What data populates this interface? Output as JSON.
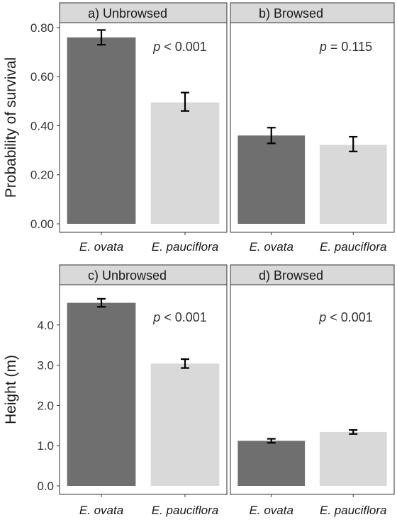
{
  "chart_data": [
    {
      "type": "bar",
      "panel": "a",
      "title": "a) Unbrowsed",
      "categories": [
        "E. ovata",
        "E. pauciflora"
      ],
      "values": [
        0.76,
        0.495
      ],
      "err_low": [
        0.73,
        0.46
      ],
      "err_high": [
        0.79,
        0.535
      ],
      "colors": [
        "#6f6f6f",
        "#d9d9d9"
      ],
      "ylabel": "Probability of survival",
      "ylim": [
        0,
        0.82
      ],
      "yticks": [
        0.0,
        0.2,
        0.4,
        0.6,
        0.8
      ],
      "ytick_labels": [
        "0.00",
        "0.20",
        "0.40",
        "0.60",
        "0.80"
      ],
      "annotation": {
        "p": "p",
        "rest": " < 0.001"
      }
    },
    {
      "type": "bar",
      "panel": "b",
      "title": "b) Browsed",
      "categories": [
        "E. ovata",
        "E. pauciflora"
      ],
      "values": [
        0.36,
        0.322
      ],
      "err_low": [
        0.328,
        0.295
      ],
      "err_high": [
        0.392,
        0.355
      ],
      "colors": [
        "#6f6f6f",
        "#d9d9d9"
      ],
      "ylim": [
        0,
        0.82
      ],
      "annotation": {
        "p": "p",
        "rest": " = 0.115"
      }
    },
    {
      "type": "bar",
      "panel": "c",
      "title": "c) Unbrowsed",
      "categories": [
        "E. ovata",
        "E. pauciflora"
      ],
      "values": [
        4.55,
        3.04
      ],
      "err_low": [
        4.45,
        2.93
      ],
      "err_high": [
        4.65,
        3.15
      ],
      "colors": [
        "#6f6f6f",
        "#d9d9d9"
      ],
      "ylabel": "Height (m)",
      "ylim": [
        0,
        5.0
      ],
      "yticks": [
        0.0,
        1.0,
        2.0,
        3.0,
        4.0
      ],
      "ytick_labels": [
        "0.0",
        "1.0",
        "2.0",
        "3.0",
        "4.0"
      ],
      "annotation": {
        "p": "p",
        "rest": " < 0.001"
      }
    },
    {
      "type": "bar",
      "panel": "d",
      "title": "d) Browsed",
      "categories": [
        "E. ovata",
        "E. pauciflora"
      ],
      "values": [
        1.12,
        1.34
      ],
      "err_low": [
        1.07,
        1.29
      ],
      "err_high": [
        1.17,
        1.39
      ],
      "colors": [
        "#6f6f6f",
        "#d9d9d9"
      ],
      "ylim": [
        0,
        5.0
      ],
      "annotation": {
        "p": "p",
        "rest": " < 0.001"
      }
    }
  ]
}
